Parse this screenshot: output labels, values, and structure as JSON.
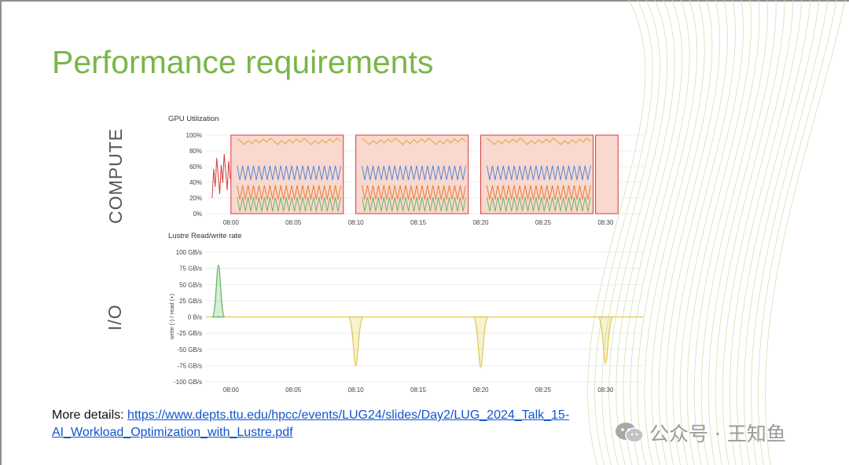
{
  "slide": {
    "title": "Performance requirements",
    "compute_label": "COMPUTE",
    "io_label": "I/O",
    "footer_prefix": "More details: ",
    "footer_link_line1": "https://www.depts.ttu.edu/hpcc/events/LUG24/slides/Day2/LUG_2024_Talk_15-",
    "footer_link_line2": "AI_Workload_Optimization_with_Lustre.pdf",
    "watermark_text": "公众号 · 王知鱼",
    "watermark_icon": "wechat-icon",
    "title_color": "#7ab648"
  },
  "chart_data": [
    {
      "type": "line",
      "title": "GPU Utilization",
      "xlabel": "",
      "ylabel": "",
      "x_ticks": [
        "08:00",
        "08:05",
        "08:10",
        "08:15",
        "08:20",
        "08:25",
        "08:30",
        "08:3"
      ],
      "y_ticks": [
        "0%",
        "20%",
        "40%",
        "60%",
        "80%",
        "100%"
      ],
      "ylim": [
        0,
        100
      ],
      "xlim_minutes": [
        "07:58",
        "08:33"
      ],
      "grid": true,
      "colors": {
        "high": "#e8a33a",
        "peak": "#d63a3a",
        "mid_blue": "#4a7fd6",
        "mid_orange": "#e8752a",
        "low_green": "#5fb35f",
        "fill": "#f8d8cf"
      },
      "series": [
        {
          "x": [
            "07:59",
            "08:00",
            "08:00",
            "08:09",
            "08:10",
            "08:10",
            "08:14",
            "08:19",
            "08:20",
            "08:20",
            "08:29",
            "08:30",
            "08:31"
          ],
          "values": [
            60,
            0,
            98,
            98,
            0,
            98,
            98,
            98,
            0,
            98,
            98,
            0,
            98
          ]
        },
        {
          "x": [
            "08:00",
            "08:09",
            "08:10",
            "08:19",
            "08:20",
            "08:29"
          ],
          "values": [
            55,
            55,
            55,
            55,
            55,
            55
          ]
        },
        {
          "x": [
            "08:00",
            "08:09",
            "08:10",
            "08:19",
            "08:20",
            "08:29"
          ],
          "values": [
            30,
            30,
            30,
            30,
            30,
            30
          ]
        },
        {
          "x": [
            "08:00",
            "08:09",
            "08:10",
            "08:19",
            "08:20",
            "08:29"
          ],
          "values": [
            15,
            15,
            15,
            15,
            15,
            15
          ]
        }
      ]
    },
    {
      "type": "area",
      "title": "Lustre Read/write rate",
      "xlabel": "",
      "ylabel": "write (-) / read (+)",
      "x_ticks": [
        "08:00",
        "08:05",
        "08:10",
        "08:15",
        "08:20",
        "08:25",
        "08:30",
        "08:3"
      ],
      "y_ticks": [
        "100 GB/s",
        "75 GB/s",
        "50 GB/s",
        "25 GB/s",
        "0 B/s",
        "-25 GB/s",
        "-50 GB/s",
        "-75 GB/s",
        "-100 GB/s"
      ],
      "ylim": [
        -100,
        100
      ],
      "unit": "GB/s",
      "grid": true,
      "series": [
        {
          "kind": "read",
          "color": "#5fb35f",
          "x": [
            "07:58.5",
            "07:59",
            "07:59.5"
          ],
          "values": [
            0,
            80,
            0
          ]
        },
        {
          "kind": "write",
          "color": "#e3c84a",
          "x": [
            "08:09.4",
            "08:10",
            "08:10.6"
          ],
          "values": [
            0,
            -76,
            0
          ]
        },
        {
          "kind": "write",
          "color": "#e3c84a",
          "x": [
            "08:19.4",
            "08:20",
            "08:20.6"
          ],
          "values": [
            0,
            -78,
            0
          ]
        },
        {
          "kind": "write",
          "color": "#e3c84a",
          "x": [
            "08:29.4",
            "08:30",
            "08:30.6"
          ],
          "values": [
            0,
            -72,
            0
          ]
        }
      ]
    }
  ]
}
